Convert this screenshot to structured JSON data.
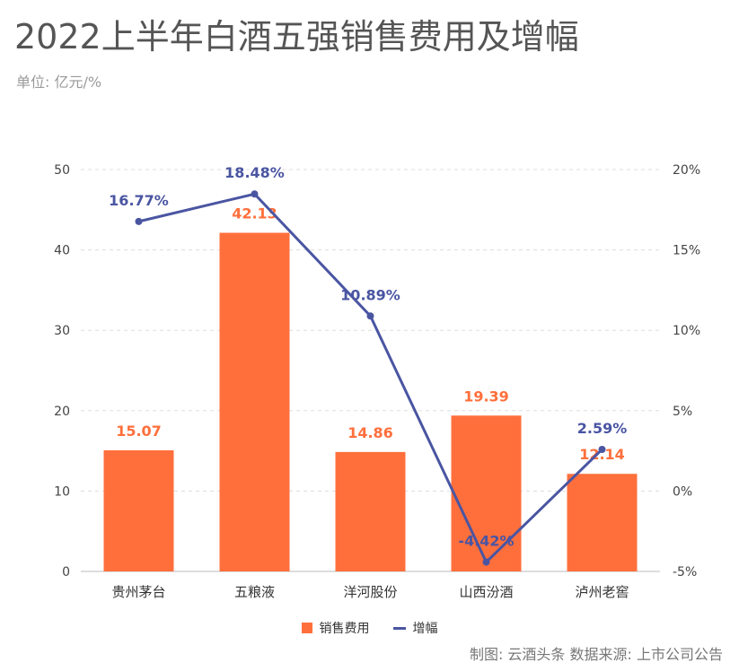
{
  "title": "2022上半年白酒五强销售费用及增幅",
  "subtitle": "单位: 亿元/%",
  "source": "制图:  云酒头条    数据来源: 上市公司公告",
  "colors": {
    "bar": "#FF6F3C",
    "line": "#4A55A2",
    "grid": "#dddddd",
    "tick": "#444444"
  },
  "chart_data": {
    "type": "bar+line",
    "categories": [
      "贵州茅台",
      "五粮液",
      "洋河股份",
      "山西汾酒",
      "泸州老窖"
    ],
    "series": [
      {
        "name": "销售费用",
        "type": "bar",
        "axis": "left",
        "values": [
          15.07,
          42.13,
          14.86,
          19.39,
          12.14
        ],
        "labels": [
          "15.07",
          "42.13",
          "14.86",
          "19.39",
          "12.14"
        ]
      },
      {
        "name": "增幅",
        "type": "line",
        "axis": "right",
        "values": [
          16.77,
          18.48,
          10.89,
          -4.42,
          2.59
        ],
        "labels": [
          "16.77%",
          "18.48%",
          "10.89%",
          "-4.42%",
          "2.59%"
        ]
      }
    ],
    "yleft": {
      "min": 0,
      "max": 50,
      "ticks": [
        "0",
        "10",
        "20",
        "30",
        "40",
        "50"
      ]
    },
    "yright": {
      "min": -5,
      "max": 20,
      "ticks": [
        "-5%",
        "0%",
        "5%",
        "10%",
        "15%",
        "20%"
      ]
    },
    "grid": true,
    "legend_position": "bottom-center"
  }
}
